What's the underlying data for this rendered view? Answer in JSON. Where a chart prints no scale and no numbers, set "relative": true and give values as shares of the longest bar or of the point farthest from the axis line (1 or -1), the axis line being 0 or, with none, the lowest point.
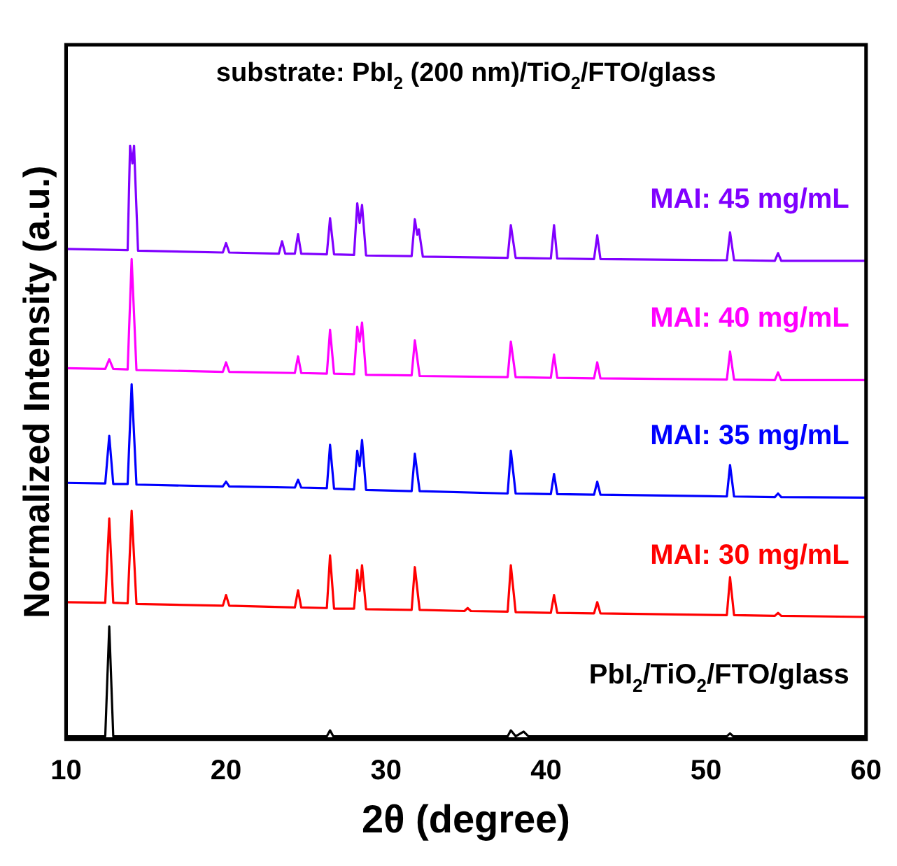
{
  "chart_data": {
    "type": "line",
    "title": "substrate: PbI$_{2}$ (200 nm)/TiO$_{2}$/FTO/glass",
    "xlabel": "2θ (degree)",
    "ylabel": "Normalized Intensity (a.u.)",
    "relative": true,
    "xlim": [
      10,
      60
    ],
    "xticks": [
      10,
      20,
      30,
      40,
      50,
      60
    ],
    "grid": false,
    "legend": false,
    "marker": "none",
    "line_style": "solid",
    "series": [
      {
        "name": "PbI$_{2}$/TiO$_{2}$/FTO/glass",
        "color": "#000000",
        "x": [
          10,
          12.45,
          12.7,
          12.95,
          26.3,
          26.5,
          26.7,
          37.6,
          37.8,
          38.1,
          38.6,
          38.9,
          51.3,
          51.5,
          51.7,
          60
        ],
        "values": [
          0.005,
          0.005,
          0.19,
          0.005,
          0.005,
          0.015,
          0.005,
          0.005,
          0.015,
          0.005,
          0.013,
          0.005,
          0.005,
          0.01,
          0.005,
          0.005
        ]
      },
      {
        "name": "MAI: 30 mg/mL",
        "color": "#ff0000",
        "x": [
          10,
          12.45,
          12.7,
          12.95,
          13.85,
          14.1,
          14.4,
          19.8,
          20,
          20.2,
          24.3,
          24.5,
          24.7,
          26.3,
          26.5,
          26.75,
          28.0,
          28.2,
          28.35,
          28.5,
          28.75,
          31.6,
          31.8,
          32.1,
          34.9,
          35.1,
          35.3,
          37.6,
          37.8,
          38.1,
          40.3,
          40.5,
          40.7,
          43.0,
          43.2,
          43.4,
          51.3,
          51.5,
          51.75,
          54.3,
          54.5,
          54.7,
          60
        ],
        "values": [
          0.231,
          0.23,
          0.372,
          0.23,
          0.229,
          0.385,
          0.228,
          0.225,
          0.243,
          0.225,
          0.222,
          0.251,
          0.222,
          0.221,
          0.31,
          0.22,
          0.22,
          0.285,
          0.25,
          0.293,
          0.219,
          0.218,
          0.29,
          0.218,
          0.216,
          0.221,
          0.216,
          0.215,
          0.293,
          0.214,
          0.213,
          0.243,
          0.213,
          0.212,
          0.231,
          0.212,
          0.209,
          0.273,
          0.209,
          0.208,
          0.213,
          0.208,
          0.206
        ]
      },
      {
        "name": "MAI: 35 mg/mL",
        "color": "#0000ff",
        "x": [
          10,
          12.45,
          12.7,
          12.95,
          13.85,
          14.1,
          14.4,
          19.8,
          20,
          20.2,
          24.3,
          24.5,
          24.7,
          26.3,
          26.5,
          26.75,
          28.0,
          28.2,
          28.35,
          28.5,
          28.75,
          31.6,
          31.8,
          32.1,
          37.6,
          37.8,
          38.1,
          40.3,
          40.5,
          40.7,
          43.0,
          43.2,
          43.4,
          51.3,
          51.5,
          51.75,
          54.3,
          54.5,
          54.7,
          60
        ],
        "values": [
          0.432,
          0.431,
          0.511,
          0.43,
          0.43,
          0.598,
          0.429,
          0.426,
          0.434,
          0.426,
          0.424,
          0.437,
          0.424,
          0.423,
          0.496,
          0.422,
          0.421,
          0.486,
          0.46,
          0.504,
          0.42,
          0.418,
          0.481,
          0.418,
          0.414,
          0.486,
          0.414,
          0.413,
          0.447,
          0.413,
          0.412,
          0.434,
          0.412,
          0.409,
          0.462,
          0.409,
          0.408,
          0.414,
          0.408,
          0.407
        ]
      },
      {
        "name": "MAI: 40 mg/mL",
        "color": "#ff00ff",
        "x": [
          10,
          12.45,
          12.7,
          12.95,
          13.85,
          14.1,
          14.4,
          19.8,
          20,
          20.2,
          24.3,
          24.5,
          24.7,
          26.3,
          26.5,
          26.75,
          28.0,
          28.2,
          28.35,
          28.5,
          28.75,
          31.6,
          31.8,
          32.1,
          37.6,
          37.8,
          38.1,
          40.3,
          40.5,
          40.7,
          43.0,
          43.2,
          43.4,
          51.3,
          51.5,
          51.75,
          54.3,
          54.5,
          54.7,
          60
        ],
        "values": [
          0.625,
          0.624,
          0.64,
          0.624,
          0.623,
          0.809,
          0.622,
          0.619,
          0.635,
          0.619,
          0.617,
          0.645,
          0.617,
          0.616,
          0.69,
          0.616,
          0.615,
          0.695,
          0.67,
          0.702,
          0.614,
          0.613,
          0.672,
          0.612,
          0.61,
          0.67,
          0.61,
          0.609,
          0.648,
          0.609,
          0.608,
          0.635,
          0.608,
          0.606,
          0.653,
          0.606,
          0.605,
          0.618,
          0.605,
          0.605
        ]
      },
      {
        "name": "MAI: 45 mg/mL",
        "color": "#8000ff",
        "x": [
          10,
          13.85,
          14.0,
          14.15,
          14.25,
          14.5,
          19.8,
          20,
          20.2,
          23.3,
          23.5,
          23.7,
          24.3,
          24.5,
          24.7,
          26.3,
          26.5,
          26.75,
          28.0,
          28.2,
          28.35,
          28.5,
          28.75,
          31.6,
          31.8,
          31.95,
          32.05,
          32.3,
          37.6,
          37.8,
          38.1,
          40.3,
          40.5,
          40.7,
          43.0,
          43.2,
          43.4,
          51.3,
          51.5,
          51.75,
          54.3,
          54.5,
          54.7,
          60
        ],
        "values": [
          0.826,
          0.824,
          1.0,
          0.97,
          1.0,
          0.823,
          0.82,
          0.836,
          0.82,
          0.818,
          0.839,
          0.818,
          0.818,
          0.851,
          0.818,
          0.817,
          0.878,
          0.817,
          0.816,
          0.903,
          0.87,
          0.9,
          0.815,
          0.814,
          0.876,
          0.85,
          0.859,
          0.813,
          0.811,
          0.866,
          0.811,
          0.81,
          0.866,
          0.81,
          0.809,
          0.849,
          0.809,
          0.807,
          0.854,
          0.807,
          0.806,
          0.819,
          0.806,
          0.806
        ]
      }
    ]
  }
}
